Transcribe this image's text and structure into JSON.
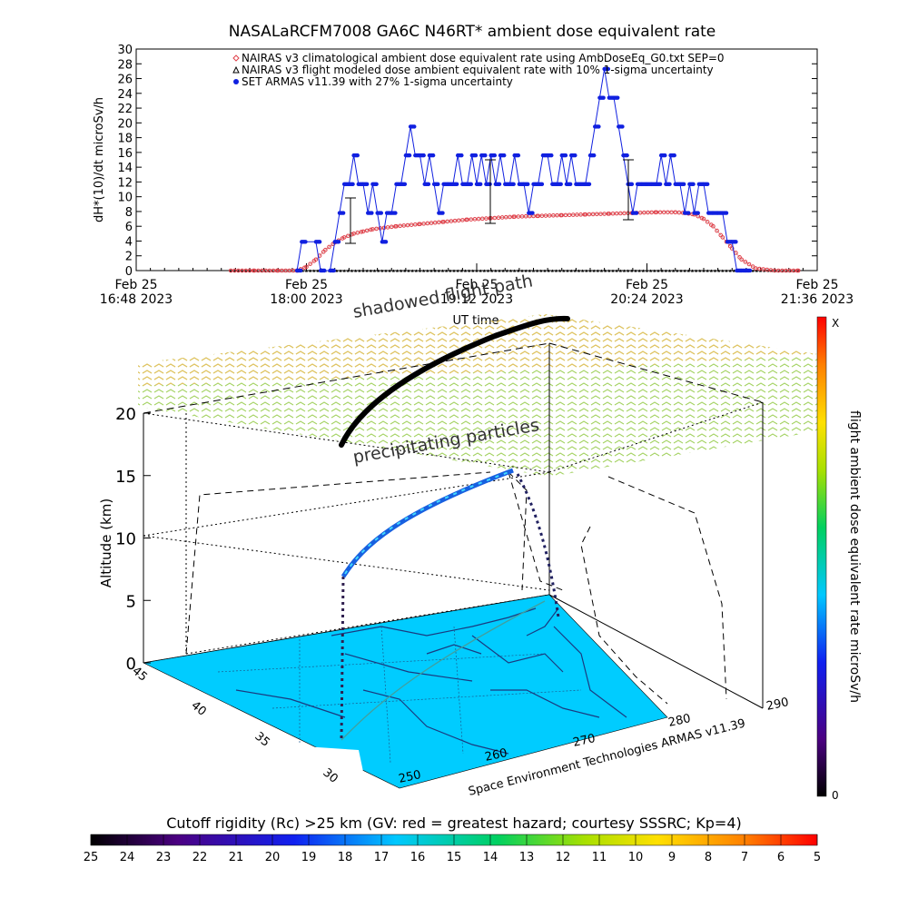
{
  "top_title": "NASALaRCFM7008  GA6C N46RT* ambient dose equivalent rate",
  "chart_data": [
    {
      "type": "line",
      "ylabel": "dH*(10)/dt microSv/h",
      "xlabel": "UT time",
      "ylim": [
        0,
        30
      ],
      "y_ticks": [
        0,
        2,
        4,
        6,
        8,
        10,
        12,
        14,
        16,
        18,
        20,
        22,
        24,
        26,
        28,
        30
      ],
      "x_range_min": [
        0,
        288
      ],
      "x_ticks": [
        {
          "t": 0,
          "line1": "Feb 25",
          "line2": "16:48 2023"
        },
        {
          "t": 72,
          "line1": "Feb 25",
          "line2": "18:00 2023"
        },
        {
          "t": 144,
          "line1": "Feb 25",
          "line2": "19:12 2023"
        },
        {
          "t": 216,
          "line1": "Feb 25",
          "line2": "20:24 2023"
        },
        {
          "t": 288,
          "line1": "Feb 25",
          "line2": "21:36 2023"
        }
      ],
      "legend_position": "top-center",
      "series": [
        {
          "name": "NAIRAS v3 climatological ambient dose equivalent rate using AmbDoseEq_G0.txt SEP=0",
          "color": "#e0404a",
          "marker": "diamond",
          "x": [
            40,
            50,
            60,
            68,
            72,
            76,
            80,
            84,
            88,
            92,
            96,
            100,
            110,
            120,
            130,
            140,
            150,
            160,
            170,
            180,
            190,
            200,
            210,
            220,
            228,
            232,
            236,
            240,
            244,
            248,
            252,
            256,
            262,
            270,
            280
          ],
          "y": [
            0,
            0,
            0,
            0,
            0.5,
            1.5,
            2.8,
            3.8,
            4.5,
            5,
            5.3,
            5.6,
            6,
            6.3,
            6.6,
            6.9,
            7.1,
            7.3,
            7.4,
            7.5,
            7.6,
            7.7,
            7.8,
            7.9,
            7.9,
            7.8,
            7.6,
            7,
            6,
            4.5,
            3,
            1.5,
            0.3,
            0,
            0
          ]
        },
        {
          "name": "NAIRAS v3 flight modeled dose ambient equivalent rate with 10% 1-sigma uncertainty",
          "color": "#000000",
          "marker": "triangle",
          "x": [
            40,
            280
          ],
          "y": [
            0,
            0
          ]
        },
        {
          "name": "SET ARMAS v11.39 with 27% 1-sigma uncertainty",
          "color": "#1020e0",
          "marker": "dot",
          "x": [
            68,
            70,
            76,
            78,
            82,
            84,
            86,
            88,
            90,
            92,
            94,
            96,
            98,
            100,
            102,
            104,
            106,
            108,
            110,
            112,
            114,
            116,
            118,
            120,
            122,
            124,
            126,
            128,
            130,
            132,
            134,
            136,
            138,
            140,
            142,
            144,
            146,
            148,
            150,
            152,
            154,
            156,
            158,
            160,
            162,
            164,
            166,
            168,
            170,
            172,
            174,
            176,
            178,
            180,
            182,
            184,
            186,
            188,
            190,
            192,
            194,
            196,
            198,
            200,
            202,
            204,
            206,
            208,
            210,
            212,
            214,
            216,
            218,
            220,
            222,
            224,
            226,
            228,
            230,
            232,
            234,
            236,
            238,
            240,
            242,
            244,
            246,
            248,
            250,
            252,
            254,
            256,
            258
          ],
          "y": [
            0,
            3.9,
            3.9,
            0,
            0,
            3.9,
            7.8,
            11.7,
            11.7,
            15.6,
            11.7,
            11.7,
            7.8,
            11.7,
            7.8,
            3.9,
            7.8,
            7.8,
            11.7,
            11.7,
            15.6,
            19.5,
            15.6,
            15.6,
            11.7,
            15.6,
            11.7,
            7.8,
            11.7,
            11.7,
            11.7,
            15.6,
            11.7,
            11.7,
            15.6,
            11.7,
            15.6,
            11.7,
            15.6,
            11.7,
            15.6,
            11.7,
            11.7,
            15.6,
            11.7,
            11.7,
            7.8,
            11.7,
            11.7,
            15.6,
            15.6,
            11.7,
            11.7,
            15.6,
            11.7,
            15.6,
            11.7,
            11.7,
            11.7,
            15.6,
            19.5,
            23.4,
            27.3,
            23.4,
            23.4,
            19.5,
            15.6,
            11.7,
            7.8,
            11.7,
            11.7,
            11.7,
            11.7,
            11.7,
            15.6,
            11.7,
            15.6,
            11.7,
            11.7,
            7.8,
            11.7,
            7.8,
            11.7,
            11.7,
            7.8,
            7.8,
            7.8,
            7.8,
            3.9,
            3.9,
            0,
            0,
            0
          ]
        }
      ]
    },
    {
      "type": "scatter",
      "zlabel": "Altitude (km)",
      "z_ticks": [
        0,
        5,
        10,
        15,
        20
      ],
      "lat_ticks": [
        30,
        35,
        40,
        45
      ],
      "lon_ticks": [
        250,
        260,
        270,
        280,
        290
      ],
      "annotations": [
        "shadowed flight path",
        "precipitating particles"
      ],
      "credit": "Space Environment Technologies ARMAS v11.39",
      "colorbar_right": {
        "label": "flight ambient dose equivalent rate microSv/h",
        "min_label": "0",
        "max_label": "X"
      },
      "colorbar_bottom": {
        "title": "Cutoff rigidity (Rc) >25 km (GV: red = greatest hazard; courtesy SSSRC; Kp=4)",
        "ticks": [
          25,
          24,
          23,
          22,
          21,
          20,
          19,
          18,
          17,
          16,
          15,
          14,
          13,
          12,
          11,
          10,
          9,
          8,
          7,
          6,
          5
        ]
      }
    }
  ]
}
